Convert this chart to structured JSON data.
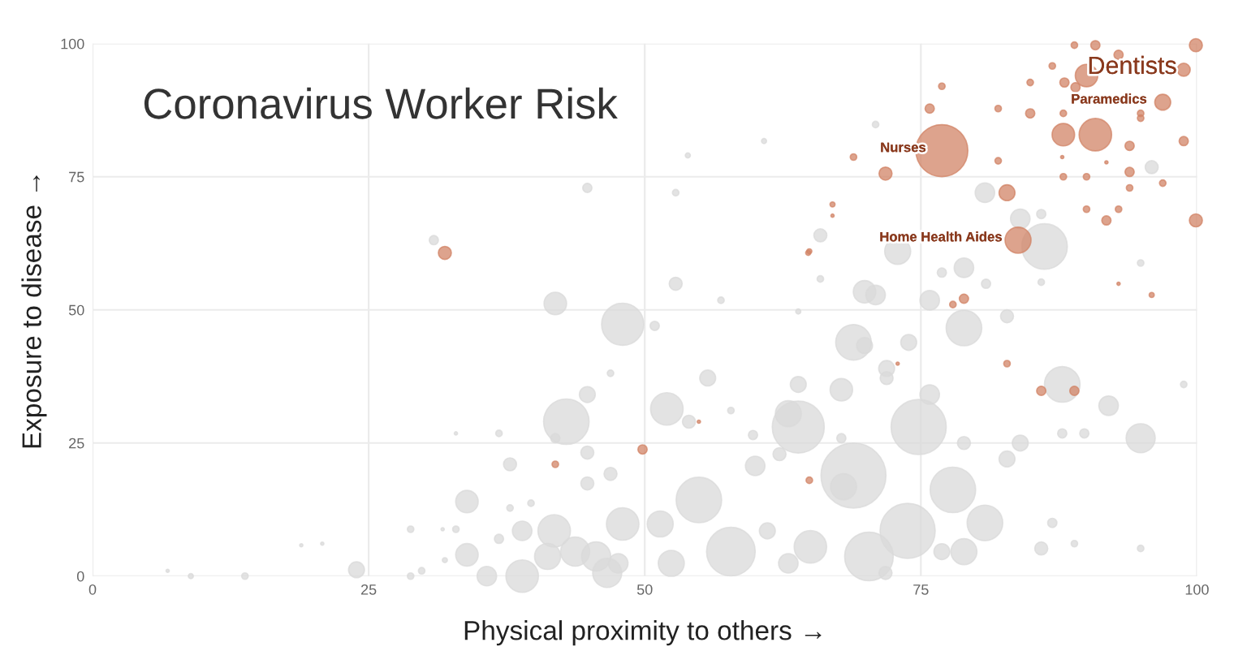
{
  "chart_data": {
    "type": "bubble",
    "title": "Coronavirus Worker Risk",
    "xlabel": "Physical proximity to others →",
    "ylabel": "Exposure to disease →",
    "xlim": [
      0,
      100
    ],
    "ylim": [
      0,
      100
    ],
    "xticks": [
      0,
      25,
      50,
      75,
      100
    ],
    "yticks": [
      0,
      25,
      50,
      75,
      100
    ],
    "grid": true,
    "series": [
      {
        "color": "#d9d9d9",
        "x": [
          48,
          50.9,
          56.9,
          63.9,
          68.9,
          69.9,
          73.9,
          71.9,
          71.9,
          67.8,
          75.8,
          74.8,
          63.9,
          78.9,
          82.8,
          63.9,
          55.7,
          52,
          54,
          67.8,
          68.9,
          77.9,
          54.9,
          60,
          80.8,
          73.8,
          70.3,
          57.8,
          68,
          87.8,
          92,
          94.9,
          87.8,
          89.8,
          82.8,
          84,
          78.9,
          86.9,
          85.9,
          88.9,
          94.9,
          98.8,
          78.9,
          76.9,
          65,
          61.1,
          51.4,
          48,
          52.4,
          47.6,
          63,
          71.8,
          57.8,
          59.8,
          62.2,
          63,
          41.9,
          42.9,
          44.8,
          41.9,
          44.8,
          37.8,
          33.9,
          37.8,
          39.7,
          44.8,
          46.9,
          41.8,
          38.9,
          36.8,
          33.9,
          35.7,
          38.9,
          41.2,
          43.7,
          45.6,
          46.6,
          31.9,
          28.8,
          23.9,
          13.8,
          8.9,
          6.8,
          18.9,
          20.8,
          28.8,
          29.8,
          32.9,
          36.8,
          46.9,
          32.9,
          31.7,
          30.9,
          44.8,
          52.8,
          53.9,
          60.8,
          52.8,
          80.8,
          84,
          85.9,
          86.2,
          72.9,
          78.9,
          76.9,
          75.8,
          80.9,
          69.9,
          70.9,
          65.9,
          65.9,
          95.9,
          85.9,
          94.9,
          70.9
        ],
        "values": [
          47.3,
          47,
          51.8,
          49.7,
          43.9,
          43.3,
          43.9,
          39,
          37.2,
          35,
          34.1,
          28,
          28,
          46.6,
          48.8,
          36,
          37.2,
          31.4,
          29,
          25.9,
          18.9,
          16.2,
          14.3,
          20.7,
          10,
          8.5,
          3.7,
          4.6,
          16.8,
          36,
          32,
          25.9,
          26.8,
          26.8,
          22,
          25,
          25,
          10,
          5.2,
          6.1,
          5.2,
          36,
          4.6,
          4.6,
          5.5,
          8.5,
          9.8,
          9.8,
          2.4,
          2.4,
          2.4,
          0.6,
          31.1,
          26.5,
          22.9,
          30.5,
          51.2,
          29,
          34.1,
          25.9,
          23.2,
          21,
          14,
          12.8,
          13.7,
          17.4,
          19.2,
          8.5,
          8.5,
          7,
          4,
          0,
          0,
          3.7,
          4.6,
          3.7,
          0.6,
          3,
          8.8,
          1.2,
          0,
          0,
          1,
          5.8,
          6.1,
          0,
          1,
          26.8,
          26.8,
          38.1,
          8.8,
          8.8,
          63.1,
          72.9,
          72,
          79,
          81.7,
          54.9,
          72,
          67.1,
          68,
          61.9,
          61,
          57.9,
          57,
          51.8,
          54.9,
          53.4,
          52.8,
          64,
          55.8,
          76.8,
          55.2,
          58.8,
          84.8
        ],
        "sizes": [
          0.42,
          0.02,
          0.01,
          0.006,
          0.3,
          0.06,
          0.06,
          0.06,
          0.04,
          0.12,
          0.09,
          0.72,
          0.64,
          0.3,
          0.04,
          0.06,
          0.06,
          0.25,
          0.04,
          0.02,
          1,
          0.49,
          0.49,
          0.09,
          0.3,
          0.72,
          0.56,
          0.56,
          0.16,
          0.3,
          0.09,
          0.2,
          0.02,
          0.02,
          0.06,
          0.06,
          0.04,
          0.02,
          0.04,
          0.01,
          0.01,
          0.01,
          0.16,
          0.06,
          0.25,
          0.06,
          0.16,
          0.25,
          0.16,
          0.09,
          0.09,
          0.04,
          0.01,
          0.02,
          0.04,
          0.16,
          0.12,
          0.49,
          0.06,
          0.02,
          0.04,
          0.04,
          0.12,
          0.01,
          0.01,
          0.04,
          0.04,
          0.25,
          0.09,
          0.02,
          0.12,
          0.09,
          0.25,
          0.16,
          0.2,
          0.2,
          0.2,
          0.006,
          0.01,
          0.06,
          0.01,
          0.006,
          0.0025,
          0.0025,
          0.0025,
          0.01,
          0.01,
          0.0025,
          0.01,
          0.01,
          0.01,
          0.0025,
          0.02,
          0.02,
          0.01,
          0.006,
          0.006,
          0.04,
          0.09,
          0.09,
          0.02,
          0.49,
          0.16,
          0.09,
          0.02,
          0.09,
          0.02,
          0.12,
          0.09,
          0.04,
          0.01,
          0.04,
          0.01,
          0.01,
          0.01
        ]
      },
      {
        "color": "#d28467",
        "x": [
          76.9,
          83.8,
          98.8,
          96.9,
          99.9,
          90.8,
          88.9,
          92.9,
          90,
          89,
          88,
          86.9,
          84.9,
          76.9,
          75.8,
          82,
          84.9,
          87.9,
          87.9,
          90.8,
          94.9,
          94.9,
          98.8,
          93.9,
          68.9,
          71.8,
          82,
          87.9,
          90,
          93.9,
          96.9,
          93.9,
          82.8,
          90,
          92.9,
          91.8,
          99.9,
          67,
          67,
          64.9,
          78.9,
          77.9,
          92.9,
          95.9,
          87.8,
          91.8,
          82.8,
          85.9,
          88.9,
          49.8,
          64.9,
          72.9,
          54.9,
          31.9,
          64.8,
          41.9
        ],
        "values": [
          79.9,
          63.1,
          95.1,
          89,
          99.7,
          99.7,
          99.7,
          97.9,
          94,
          91.8,
          92.7,
          95.8,
          92.7,
          92,
          87.8,
          87.8,
          86.9,
          86.9,
          82.9,
          82.9,
          86.9,
          86,
          81.7,
          80.8,
          78.7,
          75.6,
          78,
          75,
          75,
          75.9,
          73.8,
          72.9,
          72,
          68.9,
          68.9,
          66.8,
          66.8,
          69.8,
          67.7,
          61,
          52.1,
          51,
          54.9,
          52.8,
          78.7,
          77.7,
          39.9,
          34.8,
          34.8,
          23.8,
          18,
          39.9,
          29,
          60.7,
          60.7,
          21
        ],
        "sizes": [
          0.64,
          0.16,
          0.04,
          0.06,
          0.04,
          0.02,
          0.01,
          0.02,
          0.12,
          0.02,
          0.02,
          0.01,
          0.01,
          0.01,
          0.02,
          0.01,
          0.02,
          0.01,
          0.12,
          0.25,
          0.01,
          0.01,
          0.02,
          0.02,
          0.01,
          0.04,
          0.01,
          0.01,
          0.01,
          0.02,
          0.01,
          0.01,
          0.06,
          0.01,
          0.01,
          0.02,
          0.04,
          0.006,
          0.0025,
          0.006,
          0.02,
          0.01,
          0.0025,
          0.006,
          0.0025,
          0.0025,
          0.01,
          0.02,
          0.02,
          0.02,
          0.01,
          0.0025,
          0.0025,
          0.04,
          0.006,
          0.01
        ]
      }
    ],
    "annotations": [
      {
        "text": "Nurses",
        "x": 76.9,
        "y": 79.9
      },
      {
        "text": "Home Health Aides",
        "x": 83.8,
        "y": 63.1
      },
      {
        "text": "Dentists",
        "x": 98.8,
        "y": 95.1
      },
      {
        "text": "Paramedics",
        "x": 96.9,
        "y": 89
      }
    ]
  }
}
